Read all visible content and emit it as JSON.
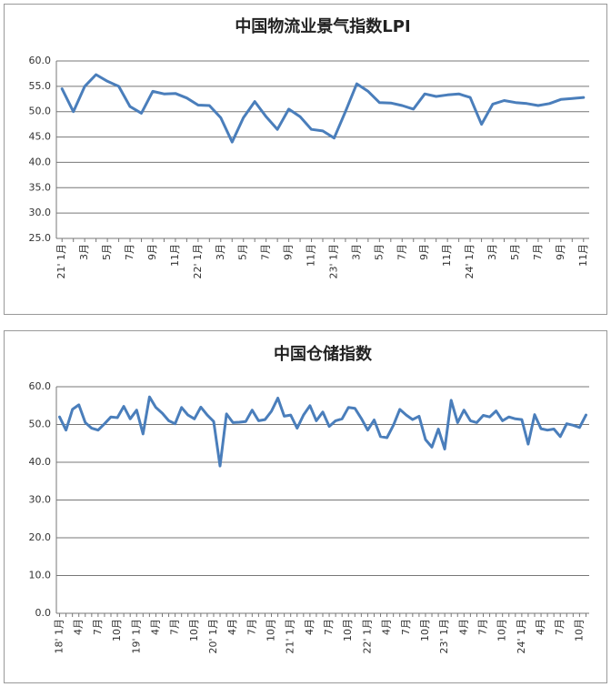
{
  "chart_data": [
    {
      "type": "line",
      "title": "中国物流业景气指数LPI",
      "categories": [
        "21' 1月",
        null,
        "3月",
        null,
        "5月",
        null,
        "7月",
        null,
        "9月",
        null,
        "11月",
        null,
        "22' 1月",
        null,
        "3月",
        null,
        "5月",
        null,
        "7月",
        null,
        "9月",
        null,
        "11月",
        null,
        "23' 1月",
        null,
        "3月",
        null,
        "5月",
        null,
        "7月",
        null,
        "9月",
        null,
        "11月",
        null,
        "24' 1月",
        null,
        "3月",
        null,
        "5月",
        null,
        "7月",
        null,
        "9月",
        null,
        "11月"
      ],
      "series": [
        {
          "name": "LPI",
          "color": "#4a7ebb",
          "values": [
            54.5,
            50.0,
            55.0,
            57.3,
            56.0,
            55.0,
            51.0,
            49.7,
            54.0,
            53.5,
            53.6,
            52.7,
            51.3,
            51.2,
            48.8,
            44.0,
            48.8,
            52.0,
            49.0,
            46.5,
            50.5,
            49.0,
            46.5,
            46.2,
            44.8,
            50.0,
            55.5,
            54.0,
            51.8,
            51.7,
            51.2,
            50.5,
            53.5,
            53.0,
            53.3,
            53.5,
            52.8,
            47.5,
            51.5,
            52.2,
            51.8,
            51.6,
            51.2,
            51.6,
            52.4,
            52.6,
            52.8
          ]
        }
      ],
      "ylim": [
        25,
        60
      ],
      "yticks": [
        {
          "value": 25,
          "label": "25.0"
        },
        {
          "value": 30,
          "label": "30.0"
        },
        {
          "value": 35,
          "label": "35.0"
        },
        {
          "value": 40,
          "label": "40.0"
        },
        {
          "value": 45,
          "label": "45.0"
        },
        {
          "value": 50,
          "label": "50.0"
        },
        {
          "value": 55,
          "label": "55.0"
        },
        {
          "value": 60,
          "label": "60.0"
        }
      ],
      "grid": true
    },
    {
      "type": "line",
      "title": "中国仓储指数",
      "categories": [
        "18' 1月",
        null,
        null,
        "4月",
        null,
        null,
        "7月",
        null,
        null,
        "10月",
        null,
        null,
        "19' 1月",
        null,
        null,
        "4月",
        null,
        null,
        "7月",
        null,
        null,
        "10月",
        null,
        null,
        "20' 1月",
        null,
        null,
        "4月",
        null,
        null,
        "7月",
        null,
        null,
        "10月",
        null,
        null,
        "21' 1月",
        null,
        null,
        "4月",
        null,
        null,
        "7月",
        null,
        null,
        "10月",
        null,
        null,
        "22' 1月",
        null,
        null,
        "4月",
        null,
        null,
        "7月",
        null,
        null,
        "10月",
        null,
        null,
        "23' 1月",
        null,
        null,
        "4月",
        null,
        null,
        "7月",
        null,
        null,
        "10月",
        null,
        null,
        "24' 1月",
        null,
        null,
        "4月",
        null,
        null,
        "7月",
        null,
        null,
        "10月",
        null
      ],
      "series": [
        {
          "name": "仓储指数",
          "color": "#4a7ebb",
          "values": [
            52.0,
            48.5,
            54.0,
            55.2,
            50.5,
            49.0,
            48.5,
            50.2,
            52.0,
            51.8,
            54.8,
            51.5,
            53.8,
            47.5,
            57.3,
            54.5,
            53.0,
            51.0,
            50.2,
            54.5,
            52.5,
            51.5,
            54.6,
            52.5,
            50.8,
            39.0,
            52.8,
            50.5,
            50.6,
            50.8,
            53.8,
            51.0,
            51.3,
            53.5,
            57.0,
            52.2,
            52.5,
            49.0,
            52.5,
            55.0,
            51.0,
            53.3,
            49.5,
            51.0,
            51.5,
            54.5,
            54.3,
            51.6,
            48.5,
            51.2,
            46.8,
            46.5,
            49.8,
            54.0,
            52.5,
            51.3,
            52.2,
            46.0,
            44.0,
            48.8,
            43.5,
            56.4,
            50.5,
            53.8,
            51.0,
            50.5,
            52.4,
            52.0,
            53.6,
            51.0,
            52.0,
            51.5,
            51.3,
            44.8,
            52.6,
            48.9,
            48.5,
            48.8,
            46.8,
            50.2,
            49.8,
            49.2,
            52.5
          ]
        }
      ],
      "ylim": [
        0,
        60
      ],
      "yticks": [
        {
          "value": 0,
          "label": "0.0"
        },
        {
          "value": 10,
          "label": "10.0"
        },
        {
          "value": 20,
          "label": "20.0"
        },
        {
          "value": 30,
          "label": "30.0"
        },
        {
          "value": 40,
          "label": "40.0"
        },
        {
          "value": 50,
          "label": "50.0"
        },
        {
          "value": 60,
          "label": "60.0"
        }
      ],
      "grid": true
    }
  ]
}
